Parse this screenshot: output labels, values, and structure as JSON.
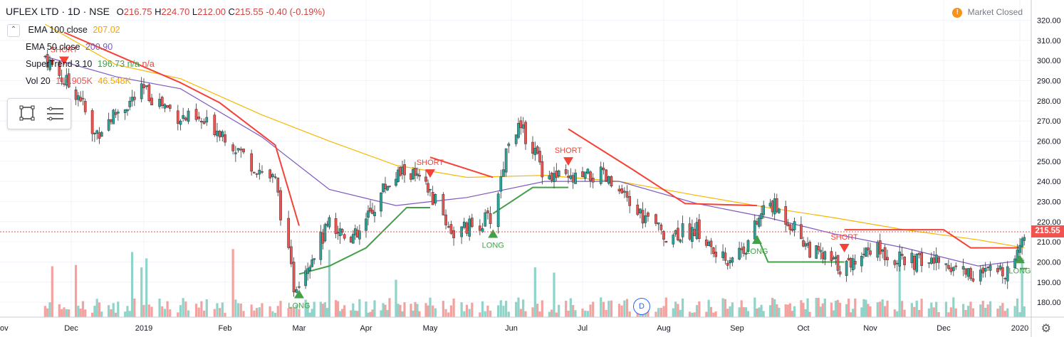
{
  "header": {
    "symbol": "UFLEX LTD · 1D · NSE",
    "open_label": "O",
    "open": "216.75",
    "high_label": "H",
    "high": "224.70",
    "low_label": "L",
    "low": "212.00",
    "close_label": "C",
    "close": "215.55",
    "change": "-0.40 (-0.19%)"
  },
  "legend": {
    "collapse_icon": "chevron-up-icon",
    "ema100_label": "EMA 100 close",
    "ema100_value": "207.02",
    "ema50_label": "EMA 50 close",
    "ema50_value": "200.90",
    "supertrend_label": "SuperTrend 3 10",
    "supertrend_value": "196.73",
    "supertrend_na1": "n/a",
    "supertrend_na2": "n/a",
    "vol_label": "Vol 20",
    "vol_value1": "111.905K",
    "vol_value2": "46.548K"
  },
  "market_status": "Market Closed",
  "market_icon": "warning-icon",
  "last_price": "215.55",
  "event_badge": "D",
  "settings_icon": "gear-icon",
  "colors": {
    "up": "#26a69a",
    "down": "#ef5350",
    "ema100": "#f5b800",
    "ema50": "#7e57c2",
    "supertrend_up": "#43a047",
    "supertrend_down": "#f44336"
  },
  "chart_data": {
    "type": "candlestick",
    "title": "UFLEX LTD · 1D · NSE",
    "y_ticks": [
      180,
      190,
      200,
      210,
      220,
      230,
      240,
      250,
      260,
      270,
      280,
      290,
      300,
      310,
      320
    ],
    "ylim": [
      175,
      325
    ],
    "x_tick_labels": [
      "Dec",
      "2019",
      "Feb",
      "Mar",
      "Apr",
      "May",
      "Jun",
      "Jul",
      "Aug",
      "Sep",
      "Oct",
      "Nov",
      "Dec",
      "2020"
    ],
    "x_label_partial_left": "ov",
    "close_series": [
      {
        "date": "2018-11-20",
        "close": 302
      },
      {
        "date": "2018-11-28",
        "close": 290
      },
      {
        "date": "2018-12-05",
        "close": 282
      },
      {
        "date": "2018-12-10",
        "close": 262
      },
      {
        "date": "2018-12-20",
        "close": 274
      },
      {
        "date": "2019-01-01",
        "close": 285
      },
      {
        "date": "2019-01-15",
        "close": 272
      },
      {
        "date": "2019-01-30",
        "close": 266
      },
      {
        "date": "2019-02-10",
        "close": 250
      },
      {
        "date": "2019-02-20",
        "close": 240
      },
      {
        "date": "2019-02-27",
        "close": 188
      },
      {
        "date": "2019-03-05",
        "close": 200
      },
      {
        "date": "2019-03-15",
        "close": 218
      },
      {
        "date": "2019-03-28",
        "close": 212
      },
      {
        "date": "2019-04-10",
        "close": 238
      },
      {
        "date": "2019-04-20",
        "close": 246
      },
      {
        "date": "2019-05-01",
        "close": 234
      },
      {
        "date": "2019-05-10",
        "close": 214
      },
      {
        "date": "2019-05-25",
        "close": 222
      },
      {
        "date": "2019-06-01",
        "close": 268
      },
      {
        "date": "2019-06-08",
        "close": 262
      },
      {
        "date": "2019-06-15",
        "close": 244
      },
      {
        "date": "2019-06-25",
        "close": 240
      },
      {
        "date": "2019-07-08",
        "close": 243
      },
      {
        "date": "2019-07-20",
        "close": 227
      },
      {
        "date": "2019-08-01",
        "close": 214
      },
      {
        "date": "2019-08-15",
        "close": 216
      },
      {
        "date": "2019-08-25",
        "close": 200
      },
      {
        "date": "2019-09-05",
        "close": 208
      },
      {
        "date": "2019-09-15",
        "close": 230
      },
      {
        "date": "2019-09-25",
        "close": 220
      },
      {
        "date": "2019-10-05",
        "close": 205
      },
      {
        "date": "2019-10-20",
        "close": 197
      },
      {
        "date": "2019-11-01",
        "close": 208
      },
      {
        "date": "2019-11-15",
        "close": 200
      },
      {
        "date": "2019-12-01",
        "close": 200
      },
      {
        "date": "2019-12-15",
        "close": 193
      },
      {
        "date": "2019-12-28",
        "close": 197
      },
      {
        "date": "2020-01-03",
        "close": 215.55
      }
    ],
    "ema100_series": [
      {
        "date": "2018-11-20",
        "value": 318
      },
      {
        "date": "2018-12-20",
        "value": 298
      },
      {
        "date": "2019-01-15",
        "value": 291
      },
      {
        "date": "2019-02-15",
        "value": 273
      },
      {
        "date": "2019-03-15",
        "value": 260
      },
      {
        "date": "2019-04-15",
        "value": 248
      },
      {
        "date": "2019-05-15",
        "value": 242
      },
      {
        "date": "2019-06-15",
        "value": 243
      },
      {
        "date": "2019-07-15",
        "value": 240
      },
      {
        "date": "2019-08-15",
        "value": 233
      },
      {
        "date": "2019-09-15",
        "value": 227
      },
      {
        "date": "2019-10-15",
        "value": 222
      },
      {
        "date": "2019-11-15",
        "value": 216
      },
      {
        "date": "2019-12-15",
        "value": 211
      },
      {
        "date": "2020-01-03",
        "value": 207.02
      }
    ],
    "ema50_series": [
      {
        "date": "2018-11-20",
        "value": 302
      },
      {
        "date": "2018-12-20",
        "value": 292
      },
      {
        "date": "2019-01-15",
        "value": 286
      },
      {
        "date": "2019-02-15",
        "value": 262
      },
      {
        "date": "2019-03-15",
        "value": 236
      },
      {
        "date": "2019-04-15",
        "value": 228
      },
      {
        "date": "2019-05-15",
        "value": 232
      },
      {
        "date": "2019-06-15",
        "value": 240
      },
      {
        "date": "2019-07-15",
        "value": 240
      },
      {
        "date": "2019-08-15",
        "value": 229
      },
      {
        "date": "2019-09-15",
        "value": 222
      },
      {
        "date": "2019-10-15",
        "value": 214
      },
      {
        "date": "2019-11-15",
        "value": 207
      },
      {
        "date": "2019-12-15",
        "value": 198
      },
      {
        "date": "2020-01-03",
        "value": 200.9
      }
    ],
    "supertrend_segments": [
      {
        "trend": "down",
        "points": [
          {
            "date": "2018-11-28",
            "value": 314
          },
          {
            "date": "2019-01-15",
            "value": 289
          },
          {
            "date": "2019-01-30",
            "value": 279
          },
          {
            "date": "2019-02-10",
            "value": 268
          },
          {
            "date": "2019-02-20",
            "value": 258
          },
          {
            "date": "2019-03-01",
            "value": 218
          }
        ]
      },
      {
        "trend": "up",
        "points": [
          {
            "date": "2019-03-01",
            "value": 194
          },
          {
            "date": "2019-03-15",
            "value": 198
          },
          {
            "date": "2019-04-01",
            "value": 207
          },
          {
            "date": "2019-04-20",
            "value": 227
          },
          {
            "date": "2019-05-01",
            "value": 227
          }
        ]
      },
      {
        "trend": "down",
        "points": [
          {
            "date": "2019-05-01",
            "value": 252
          },
          {
            "date": "2019-05-25",
            "value": 242
          }
        ]
      },
      {
        "trend": "up",
        "points": [
          {
            "date": "2019-05-25",
            "value": 224
          },
          {
            "date": "2019-06-10",
            "value": 237
          },
          {
            "date": "2019-06-25",
            "value": 237
          }
        ]
      },
      {
        "trend": "down",
        "points": [
          {
            "date": "2019-06-25",
            "value": 266
          },
          {
            "date": "2019-07-20",
            "value": 246
          },
          {
            "date": "2019-08-10",
            "value": 229
          },
          {
            "date": "2019-09-10",
            "value": 228
          }
        ]
      },
      {
        "trend": "up",
        "points": [
          {
            "date": "2019-09-10",
            "value": 213
          },
          {
            "date": "2019-09-15",
            "value": 200
          },
          {
            "date": "2019-10-20",
            "value": 200
          }
        ]
      },
      {
        "trend": "down",
        "points": [
          {
            "date": "2019-10-20",
            "value": 216
          },
          {
            "date": "2019-12-01",
            "value": 216
          },
          {
            "date": "2019-12-12",
            "value": 207
          },
          {
            "date": "2020-01-01",
            "value": 207
          }
        ]
      },
      {
        "trend": "up",
        "points": [
          {
            "date": "2020-01-01",
            "value": 196.73
          }
        ]
      }
    ],
    "signals": [
      {
        "label": "SHORT",
        "date": "2018-11-28",
        "type": "short"
      },
      {
        "label": "LONG",
        "date": "2019-03-01",
        "type": "long"
      },
      {
        "label": "SHORT",
        "date": "2019-05-01",
        "type": "short"
      },
      {
        "label": "LONG",
        "date": "2019-05-25",
        "type": "long"
      },
      {
        "label": "SHORT",
        "date": "2019-06-25",
        "type": "short"
      },
      {
        "label": "LONG",
        "date": "2019-09-10",
        "type": "long"
      },
      {
        "label": "SHORT",
        "date": "2019-10-20",
        "type": "short"
      },
      {
        "label": "LONG",
        "date": "2020-01-01",
        "type": "long"
      }
    ],
    "last_price": 215.55,
    "grid": true
  }
}
